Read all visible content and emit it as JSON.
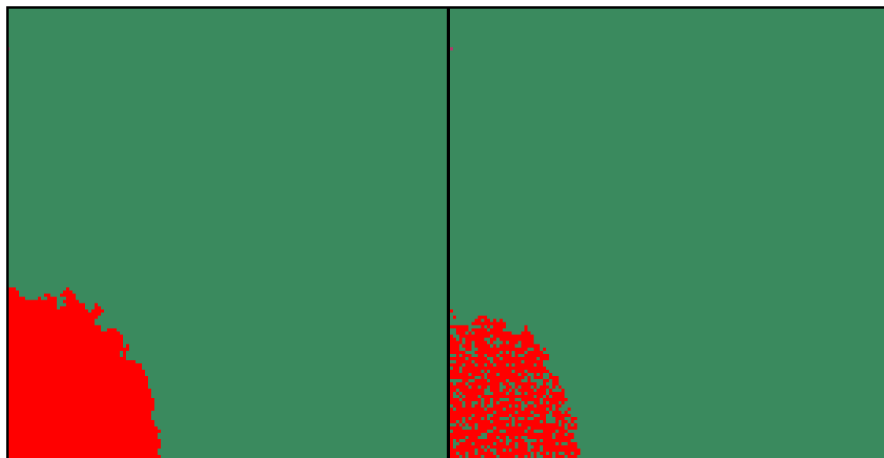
{
  "panels": [
    {
      "id": "left",
      "variant": 0
    },
    {
      "id": "right",
      "variant": 1
    }
  ],
  "legend_colors": {
    "vegetation": "#00ff00",
    "forest": "#3a8a5e",
    "urban": "#ff0000",
    "bare": "#b03a6a"
  },
  "border_color": "#000000"
}
